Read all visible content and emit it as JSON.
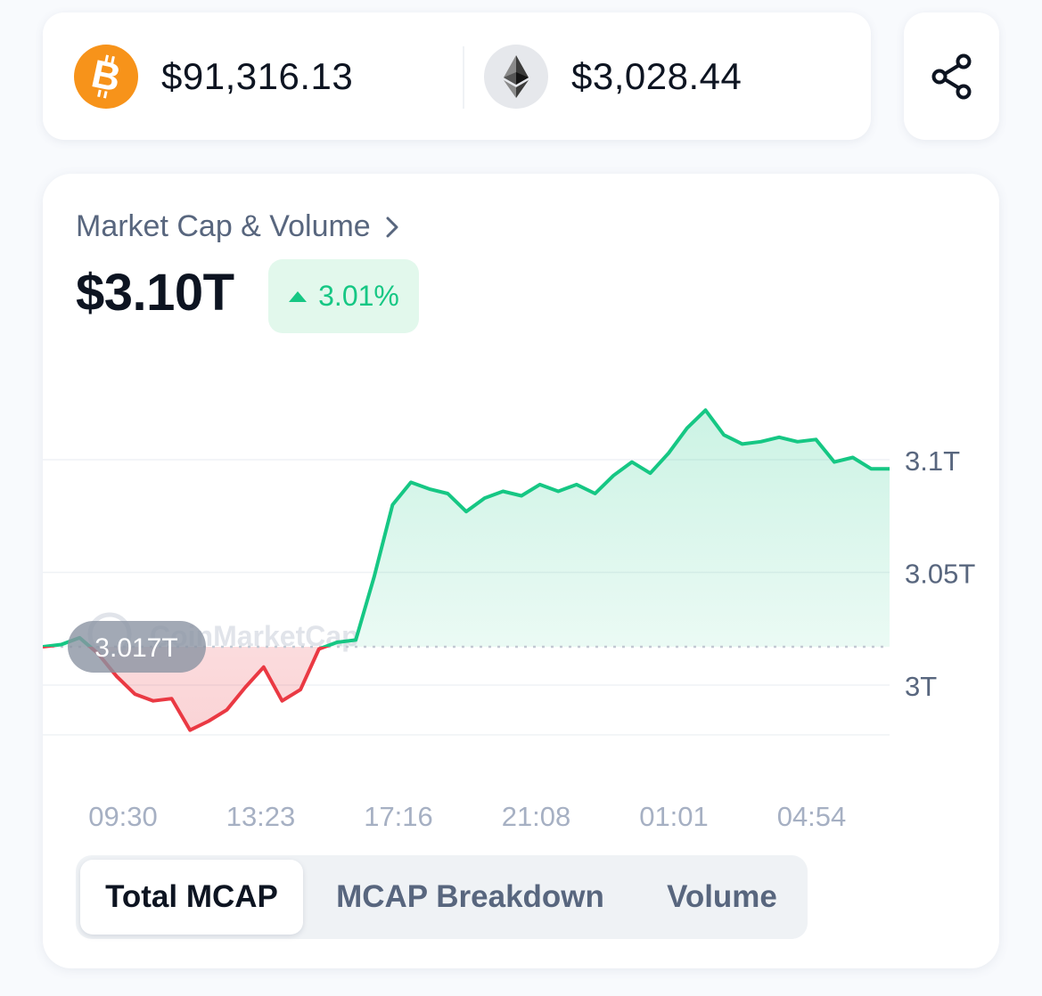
{
  "prices": {
    "btc": {
      "icon": "bitcoin-icon",
      "value": "$91,316.13",
      "color": "#f7931a"
    },
    "eth": {
      "icon": "ethereum-icon",
      "value": "$3,028.44"
    }
  },
  "share": {
    "icon": "share-icon"
  },
  "card": {
    "title": "Market Cap & Volume",
    "title_icon": "chevron-right-icon",
    "value": "$3.10T",
    "change": "3.01%",
    "change_direction": "up",
    "tabs": [
      {
        "label": "Total MCAP",
        "active": true
      },
      {
        "label": "MCAP Breakdown",
        "active": false
      },
      {
        "label": "Volume",
        "active": false
      }
    ]
  },
  "colors": {
    "up": "#16c784",
    "down": "#ea3943",
    "text_primary": "#0d1421",
    "text_secondary": "#58667e",
    "axis_text": "#a6b0c3"
  },
  "chart_data": {
    "type": "area",
    "baseline": 3.017,
    "baseline_label": "3.017T",
    "watermark": "CoinMarketCap",
    "y_ticks": [
      {
        "value": 3.1,
        "label": "3.1T"
      },
      {
        "value": 3.05,
        "label": "3.05T"
      },
      {
        "value": 3.0,
        "label": "3T"
      }
    ],
    "ylim": [
      2.966,
      3.136
    ],
    "x_ticks": [
      "09:30",
      "13:23",
      "17:16",
      "21:08",
      "01:01",
      "04:54"
    ],
    "x": [
      "09:30",
      "10:06",
      "10:42",
      "11:18",
      "11:54",
      "12:30",
      "13:06",
      "13:23",
      "13:42",
      "14:18",
      "14:54",
      "15:30",
      "16:06",
      "16:25",
      "16:42",
      "17:10",
      "17:16",
      "17:36",
      "17:50",
      "18:00",
      "18:12",
      "18:35",
      "19:10",
      "19:45",
      "20:20",
      "20:55",
      "21:08",
      "21:30",
      "22:05",
      "22:40",
      "23:15",
      "23:50",
      "00:25",
      "01:01",
      "01:35",
      "02:10",
      "02:45",
      "03:20",
      "03:40",
      "04:00",
      "04:25",
      "04:54",
      "05:25",
      "06:00",
      "06:35",
      "07:10",
      "07:35"
    ],
    "values": [
      3.017,
      3.018,
      3.021,
      3.014,
      3.004,
      2.996,
      2.993,
      2.994,
      2.98,
      2.984,
      2.989,
      2.999,
      3.008,
      2.993,
      2.998,
      3.016,
      3.019,
      3.02,
      3.048,
      3.08,
      3.09,
      3.087,
      3.085,
      3.077,
      3.083,
      3.086,
      3.084,
      3.089,
      3.086,
      3.089,
      3.085,
      3.093,
      3.099,
      3.094,
      3.103,
      3.114,
      3.122,
      3.111,
      3.107,
      3.108,
      3.11,
      3.108,
      3.109,
      3.099,
      3.101,
      3.096,
      3.096
    ]
  }
}
